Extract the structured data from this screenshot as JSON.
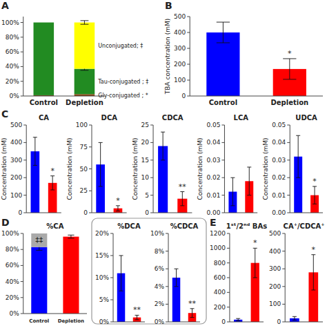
{
  "chart_data": [
    {
      "type": "bar",
      "stacked": true,
      "categories": [
        "Control",
        "Depletion"
      ],
      "series": [
        {
          "name": "Gly-conjugated ; *",
          "color": "#8B4513",
          "values": [
            1.0,
            2.5
          ]
        },
        {
          "name": "Tau-conjugated ; ‡",
          "color": "#228B22",
          "values": [
            99.0,
            34.5
          ],
          "errors": [
            null,
            2.0
          ]
        },
        {
          "name": "Unconjugated; ‡",
          "color": "#FFFF00",
          "values": [
            0.0,
            63.0
          ],
          "errors": [
            null,
            2.5
          ]
        }
      ],
      "ylim": [
        0,
        108
      ],
      "yticks": [
        {
          "value": 0,
          "label": "0%"
        },
        {
          "value": 20,
          "label": "20%"
        },
        {
          "value": 40,
          "label": "40%"
        },
        {
          "value": 60,
          "label": "60%"
        },
        {
          "value": 80,
          "label": "80%"
        },
        {
          "value": 100,
          "label": "100%"
        }
      ],
      "annotations": [
        {
          "text": "A"
        }
      ]
    },
    {
      "type": "bar",
      "categories": [
        "Control",
        "Depletion"
      ],
      "values": [
        400,
        170
      ],
      "errors": [
        65,
        65
      ],
      "colors": [
        "#0000FF",
        "#FF0000"
      ],
      "ylabel": "TBA concentration (mM)",
      "ylim": [
        0,
        500
      ],
      "yticks": [
        0,
        100,
        200,
        300,
        400,
        500
      ],
      "annotations": [
        {
          "text": "B"
        },
        {
          "text": "*",
          "index": 1
        }
      ]
    },
    {
      "type": "bar",
      "title": "CA",
      "categories": [
        null,
        null
      ],
      "values": [
        350,
        170
      ],
      "errors": [
        80,
        40
      ],
      "colors": [
        "#0000FF",
        "#FF0000"
      ],
      "ylabel": "Concentration (mM)",
      "ylim": [
        0,
        500
      ],
      "yticks": [
        0,
        100,
        200,
        300,
        400,
        500
      ],
      "annotations": [
        {
          "text": "C"
        },
        {
          "text": "*",
          "index": 1
        }
      ]
    },
    {
      "type": "bar",
      "title": "DCA",
      "categories": [
        null,
        null
      ],
      "values": [
        55,
        5
      ],
      "errors": [
        25,
        3
      ],
      "colors": [
        "#0000FF",
        "#FF0000"
      ],
      "ylabel": "Concentration (mM)",
      "ylim": [
        0,
        100
      ],
      "yticks": [
        0,
        25,
        50,
        75,
        100
      ],
      "annotations": [
        {
          "text": "*",
          "index": 1
        }
      ]
    },
    {
      "type": "bar",
      "title": "CDCA",
      "categories": [
        null,
        null
      ],
      "values": [
        19,
        4
      ],
      "errors": [
        4,
        2
      ],
      "colors": [
        "#0000FF",
        "#FF0000"
      ],
      "ylabel": "Concentration (mM)",
      "ylim": [
        0,
        25
      ],
      "yticks": [
        0,
        5,
        10,
        15,
        20,
        25
      ],
      "annotations": [
        {
          "text": "**",
          "index": 1
        }
      ]
    },
    {
      "type": "bar",
      "title": "LCA",
      "categories": [
        null,
        null
      ],
      "values": [
        0.012,
        0.018
      ],
      "errors": [
        0.008,
        0.008
      ],
      "colors": [
        "#0000FF",
        "#FF0000"
      ],
      "ylabel": "Concentration (mM)",
      "ylim": [
        0,
        0.05
      ],
      "yticks": [
        {
          "value": 0,
          "label": "0.00"
        },
        0.01,
        0.02,
        0.03,
        0.04,
        0.05
      ]
    },
    {
      "type": "bar",
      "title": "UDCA",
      "categories": [
        null,
        null
      ],
      "values": [
        0.032,
        0.01
      ],
      "errors": [
        0.012,
        0.005
      ],
      "colors": [
        "#0000FF",
        "#FF0000"
      ],
      "ylabel": "Concentration (mM)",
      "ylim": [
        0,
        0.05
      ],
      "yticks": [
        {
          "value": 0,
          "label": "0.00"
        },
        0.01,
        0.02,
        0.03,
        0.04,
        0.05
      ],
      "annotations": [
        {
          "text": "*",
          "index": 1
        }
      ]
    },
    {
      "type": "bar",
      "stacked": true,
      "title": "%CA",
      "categories": [
        "Control",
        "Depletion"
      ],
      "series": [
        {
          "colors": [
            "#0000FF",
            "#FF0000"
          ],
          "values": [
            83,
            96
          ],
          "errors": [
            4,
            2
          ]
        },
        {
          "color": "#AAAAAA",
          "values": [
            17,
            null
          ]
        }
      ],
      "ylim": [
        0,
        100
      ],
      "yticks": [
        {
          "value": 0,
          "label": "0%"
        },
        {
          "value": 20,
          "label": "20%"
        },
        {
          "value": 40,
          "label": "40%"
        },
        {
          "value": 60,
          "label": "60%"
        },
        {
          "value": 80,
          "label": "80%"
        },
        {
          "value": 100,
          "label": "100%"
        }
      ],
      "annotations": [
        {
          "text": "D"
        },
        {
          "text": "‡‡",
          "index": 0
        }
      ]
    },
    {
      "type": "bar",
      "title": "%DCA",
      "categories": [
        null,
        null
      ],
      "values": [
        11,
        1
      ],
      "errors": [
        4,
        0.5
      ],
      "colors": [
        "#0000FF",
        "#FF0000"
      ],
      "ylim": [
        0,
        20
      ],
      "yticks": [
        {
          "value": 0,
          "label": "0%"
        },
        {
          "value": 5,
          "label": "5%"
        },
        {
          "value": 10,
          "label": "10%"
        },
        {
          "value": 15,
          "label": "15%"
        },
        {
          "value": 20,
          "label": "20%"
        }
      ],
      "annotations": [
        {
          "text": "**",
          "index": 1
        }
      ]
    },
    {
      "type": "bar",
      "title": "%CDCA",
      "categories": [
        null,
        null
      ],
      "values": [
        5,
        1
      ],
      "errors": [
        1,
        0.5
      ],
      "colors": [
        "#0000FF",
        "#FF0000"
      ],
      "ylim": [
        0,
        10
      ],
      "yticks": [
        {
          "value": 0,
          "label": "0%"
        },
        {
          "value": 2,
          "label": "2%"
        },
        {
          "value": 4,
          "label": "4%"
        },
        {
          "value": 6,
          "label": "6%"
        },
        {
          "value": 8,
          "label": "8%"
        },
        {
          "value": 10,
          "label": "10%"
        }
      ],
      "annotations": [
        {
          "text": "**",
          "index": 1
        }
      ]
    },
    {
      "type": "bar",
      "title": "1ˢᵗ/2ⁿᵈ BAs",
      "categories": [
        null,
        null
      ],
      "values": [
        30,
        800
      ],
      "errors": [
        15,
        200
      ],
      "colors": [
        "#0000FF",
        "#FF0000"
      ],
      "ylim": [
        0,
        1200
      ],
      "yticks": [
        0,
        200,
        400,
        600,
        800,
        1000,
        1200
      ],
      "annotations": [
        {
          "text": "E"
        },
        {
          "text": "*",
          "index": 1
        }
      ]
    },
    {
      "type": "bar",
      "title": "CA⁺/CDCA⁺",
      "categories": [
        null,
        null
      ],
      "values": [
        20,
        280
      ],
      "errors": [
        10,
        100
      ],
      "colors": [
        "#0000FF",
        "#FF0000"
      ],
      "ylim": [
        0,
        500
      ],
      "yticks": [
        0,
        100,
        200,
        300,
        400,
        500
      ],
      "annotations": [
        {
          "text": "*",
          "index": 1
        }
      ]
    }
  ]
}
